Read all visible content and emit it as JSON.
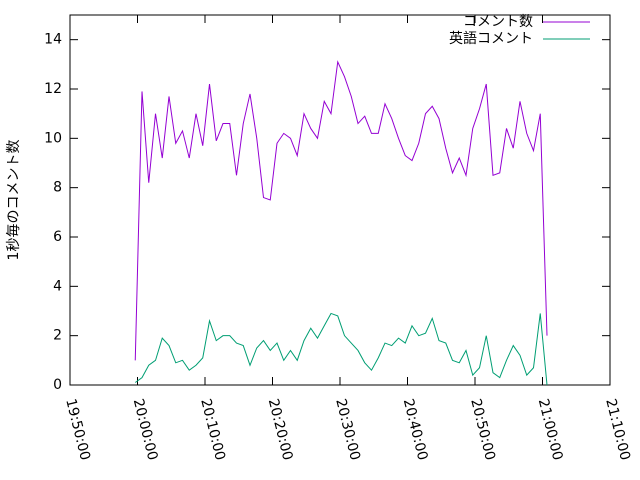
{
  "chart_data": {
    "type": "line",
    "y_label": "1秒毎のコメント数",
    "x": [
      "19:59:40",
      "20:00:40",
      "20:01:40",
      "20:02:40",
      "20:03:40",
      "20:04:40",
      "20:05:40",
      "20:06:40",
      "20:07:40",
      "20:08:40",
      "20:09:40",
      "20:10:40",
      "20:11:40",
      "20:12:40",
      "20:13:40",
      "20:14:40",
      "20:15:40",
      "20:16:40",
      "20:17:40",
      "20:18:40",
      "20:19:40",
      "20:20:40",
      "20:21:40",
      "20:22:40",
      "20:23:40",
      "20:24:40",
      "20:25:40",
      "20:26:40",
      "20:27:40",
      "20:28:40",
      "20:29:40",
      "20:30:40",
      "20:31:40",
      "20:32:40",
      "20:33:40",
      "20:34:40",
      "20:35:40",
      "20:36:40",
      "20:37:40",
      "20:38:40",
      "20:39:40",
      "20:40:40",
      "20:41:40",
      "20:42:40",
      "20:43:40",
      "20:44:40",
      "20:45:40",
      "20:46:40",
      "20:47:40",
      "20:48:40",
      "20:49:40",
      "20:50:40",
      "20:51:40",
      "20:52:40",
      "20:53:40",
      "20:54:40",
      "20:55:40",
      "20:56:40",
      "20:57:40",
      "20:58:40",
      "20:59:40",
      "21:00:40"
    ],
    "series": [
      {
        "name": "コメント数",
        "color": "#9400d3",
        "values": [
          1.0,
          11.9,
          8.2,
          11.0,
          9.2,
          11.7,
          9.8,
          10.3,
          9.2,
          11.0,
          9.7,
          12.2,
          9.9,
          10.6,
          10.6,
          8.5,
          10.6,
          11.8,
          10.0,
          7.6,
          7.5,
          9.8,
          10.2,
          10.0,
          9.3,
          11.0,
          10.4,
          10.0,
          11.5,
          11.0,
          13.1,
          12.5,
          11.7,
          10.6,
          10.9,
          10.2,
          10.2,
          11.4,
          10.8,
          10.0,
          9.3,
          9.1,
          9.8,
          11.0,
          11.3,
          10.8,
          9.6,
          8.6,
          9.2,
          8.5,
          10.4,
          11.2,
          12.2,
          8.5,
          8.6,
          10.4,
          9.6,
          11.5,
          10.2,
          9.5,
          11.0,
          2.0
        ]
      },
      {
        "name": "英語コメント",
        "color": "#009e73",
        "values": [
          0.1,
          0.3,
          0.8,
          1.0,
          1.9,
          1.6,
          0.9,
          1.0,
          0.6,
          0.8,
          1.1,
          2.6,
          1.8,
          2.0,
          2.0,
          1.7,
          1.6,
          0.8,
          1.5,
          1.8,
          1.4,
          1.7,
          1.0,
          1.4,
          1.0,
          1.8,
          2.3,
          1.9,
          2.4,
          2.9,
          2.8,
          2.0,
          1.7,
          1.4,
          0.9,
          0.6,
          1.1,
          1.7,
          1.6,
          1.9,
          1.7,
          2.4,
          2.0,
          2.1,
          2.7,
          1.8,
          1.7,
          1.0,
          0.9,
          1.4,
          0.4,
          0.7,
          2.0,
          0.5,
          0.3,
          1.0,
          1.6,
          1.2,
          0.4,
          0.7,
          2.9,
          0.0
        ]
      }
    ],
    "xlim": [
      "19:50:00",
      "21:10:00"
    ],
    "xticks": [
      "19:50:00",
      "20:00:00",
      "20:10:00",
      "20:20:00",
      "20:30:00",
      "20:40:00",
      "20:50:00",
      "21:00:00",
      "21:10:00"
    ],
    "ylim": [
      0,
      15
    ],
    "yticks": [
      0,
      2,
      4,
      6,
      8,
      10,
      12,
      14
    ],
    "legend": "top-right"
  }
}
